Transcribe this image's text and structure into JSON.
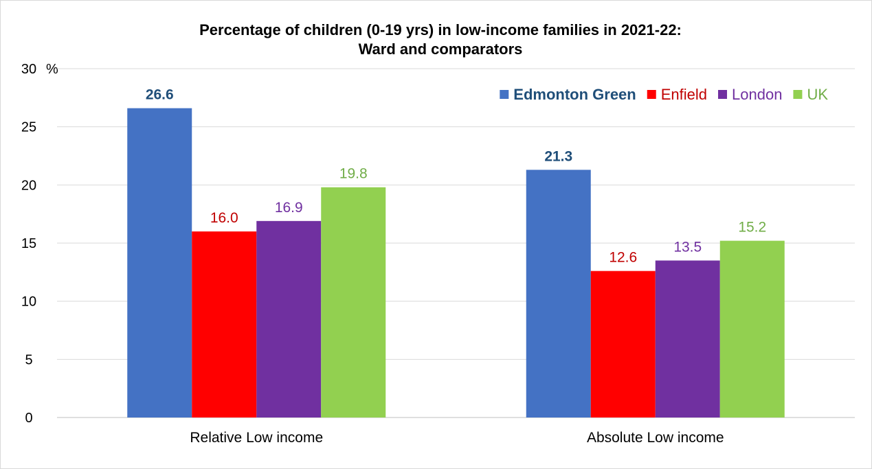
{
  "chart_data": {
    "type": "bar",
    "title_lines": [
      "Percentage of children (0-19 yrs)  in low-income families in 2021-22:",
      "Ward and comparators"
    ],
    "unit_label": "%",
    "categories": [
      "Relative Low income",
      "Absolute Low income"
    ],
    "series": [
      {
        "name": "Edmonton Green",
        "values": [
          26.6,
          21.3
        ],
        "color": "#4472C4",
        "label_color": "#1F4E79",
        "bold": true
      },
      {
        "name": "Enfield",
        "values": [
          16.0,
          12.6
        ],
        "color": "#FF0000",
        "label_color": "#C00000",
        "bold": false
      },
      {
        "name": "London",
        "values": [
          16.9,
          13.5
        ],
        "color": "#7030A0",
        "label_color": "#7030A0",
        "bold": false
      },
      {
        "name": "UK",
        "values": [
          19.8,
          15.2
        ],
        "color": "#92D050",
        "label_color": "#70AD47",
        "bold": false
      }
    ],
    "ylim": [
      0,
      30
    ],
    "yticks": [
      0,
      5,
      10,
      15,
      20,
      25,
      30
    ],
    "grid": true,
    "legend_position": "top-right"
  }
}
